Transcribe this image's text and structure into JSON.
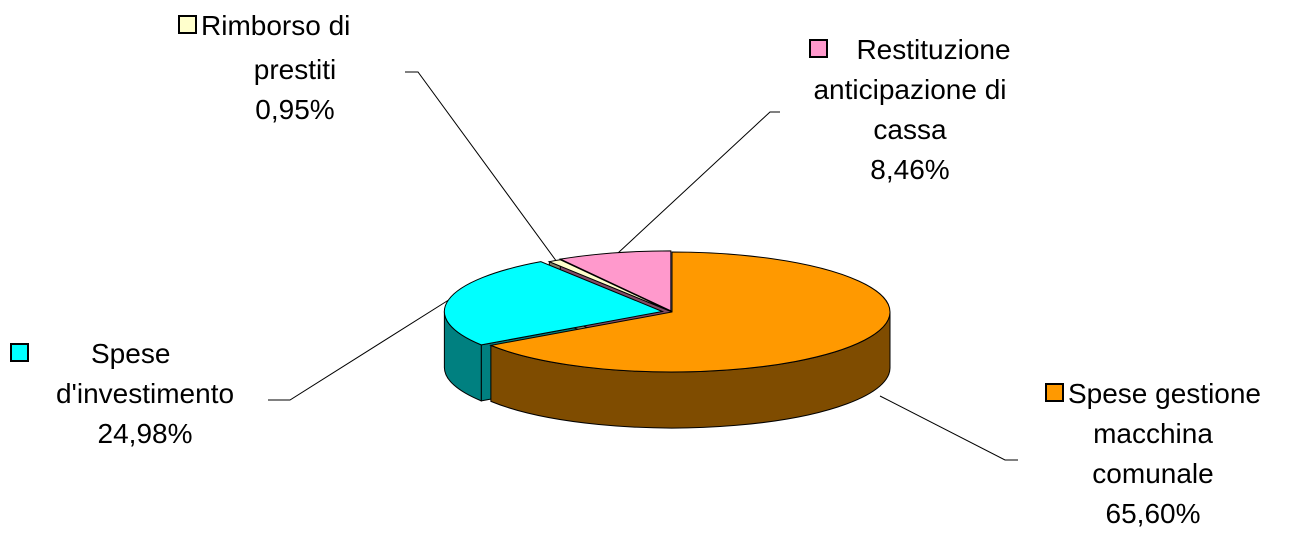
{
  "chart_data": {
    "type": "pie",
    "title": "",
    "slices": [
      {
        "name": "Spese gestione macchina comunale",
        "value": 65.6,
        "label": "65,60%",
        "color": "#FF9900",
        "side_color": "#7F4C00"
      },
      {
        "name": "Spese d'investimento",
        "value": 24.98,
        "label": "24,98%",
        "color": "#00FFFF",
        "side_color": "#008080"
      },
      {
        "name": "Rimborso di prestiti",
        "value": 0.95,
        "label": "0,95%",
        "color": "#FFFFCC",
        "side_color": "#808066"
      },
      {
        "name": "Restituzione anticipazione di cassa",
        "value": 8.46,
        "label": "8,46%",
        "color": "#FF99CC",
        "side_color": "#804C66"
      }
    ],
    "legend_placement": "labels beside slices"
  },
  "labels": {
    "gestione": {
      "line1": "Spese gestione",
      "line2": "macchina",
      "line3": "comunale",
      "pct": "65,60%"
    },
    "investimento": {
      "line1": "Spese",
      "line2": "d'investimento",
      "pct": "24,98%"
    },
    "rimborso": {
      "line1": "Rimborso di",
      "line2": "prestiti",
      "pct": "0,95%"
    },
    "restituzione": {
      "line1": "Restituzione",
      "line2": "anticipazione di",
      "line3": "cassa",
      "pct": "8,46%"
    }
  }
}
